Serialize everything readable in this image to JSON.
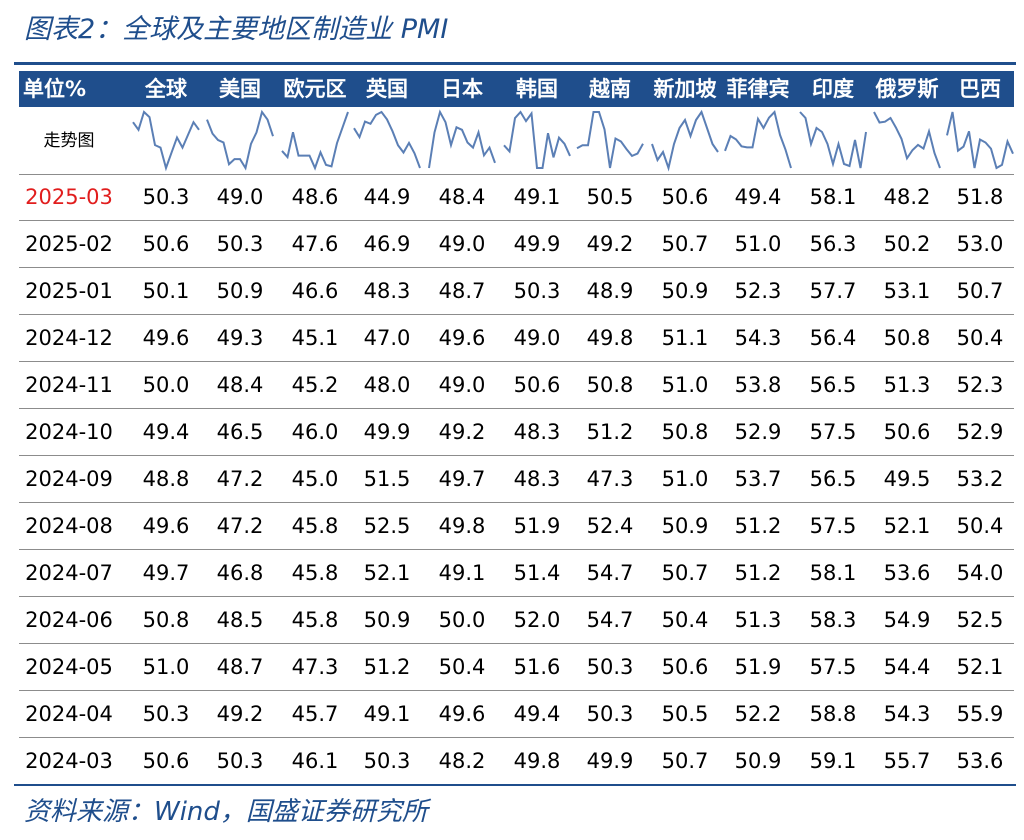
{
  "title": "图表2：全球及主要地区制造业 PMI",
  "source": "资料来源：Wind，国盛证券研究所",
  "colors": {
    "accent": "#1f4e8c",
    "line": "#5b7fb5",
    "highlight": "#e11d1d"
  },
  "chart_data": {
    "type": "table",
    "unit_header": "单位%",
    "trend_label": "走势图",
    "columns": [
      "全球",
      "美国",
      "欧元区",
      "英国",
      "日本",
      "韩国",
      "越南",
      "新加坡",
      "菲律宾",
      "印度",
      "俄罗斯",
      "巴西"
    ],
    "rows": [
      {
        "date": "2025-03",
        "values": [
          50.3,
          49.0,
          48.6,
          44.9,
          48.4,
          49.1,
          50.5,
          50.6,
          49.4,
          58.1,
          48.2,
          51.8
        ]
      },
      {
        "date": "2025-02",
        "values": [
          50.6,
          50.3,
          47.6,
          46.9,
          49.0,
          49.9,
          49.2,
          50.7,
          51.0,
          56.3,
          50.2,
          53.0
        ]
      },
      {
        "date": "2025-01",
        "values": [
          50.1,
          50.9,
          46.6,
          48.3,
          48.7,
          50.3,
          48.9,
          50.9,
          52.3,
          57.7,
          53.1,
          50.7
        ]
      },
      {
        "date": "2024-12",
        "values": [
          49.6,
          49.3,
          45.1,
          47.0,
          49.6,
          49.0,
          49.8,
          51.1,
          54.3,
          56.4,
          50.8,
          50.4
        ]
      },
      {
        "date": "2024-11",
        "values": [
          50.0,
          48.4,
          45.2,
          48.0,
          49.0,
          50.6,
          50.8,
          51.0,
          53.8,
          56.5,
          51.3,
          52.3
        ]
      },
      {
        "date": "2024-10",
        "values": [
          49.4,
          46.5,
          46.0,
          49.9,
          49.2,
          48.3,
          51.2,
          50.8,
          52.9,
          57.5,
          50.6,
          52.9
        ]
      },
      {
        "date": "2024-09",
        "values": [
          48.8,
          47.2,
          45.0,
          51.5,
          49.7,
          48.3,
          47.3,
          51.0,
          53.7,
          56.5,
          49.5,
          53.2
        ]
      },
      {
        "date": "2024-08",
        "values": [
          49.6,
          47.2,
          45.8,
          52.5,
          49.8,
          51.9,
          52.4,
          50.9,
          51.2,
          57.5,
          52.1,
          50.4
        ]
      },
      {
        "date": "2024-07",
        "values": [
          49.7,
          46.8,
          45.8,
          52.1,
          49.1,
          51.4,
          54.7,
          50.7,
          51.2,
          58.1,
          53.6,
          54.0
        ]
      },
      {
        "date": "2024-06",
        "values": [
          50.8,
          48.5,
          45.8,
          50.9,
          50.0,
          52.0,
          54.7,
          50.4,
          51.3,
          58.3,
          54.9,
          52.5
        ]
      },
      {
        "date": "2024-05",
        "values": [
          51.0,
          48.7,
          47.3,
          51.2,
          50.4,
          51.6,
          50.3,
          50.6,
          51.9,
          57.5,
          54.4,
          52.1
        ]
      },
      {
        "date": "2024-04",
        "values": [
          50.3,
          49.2,
          45.7,
          49.1,
          49.6,
          49.4,
          50.3,
          50.5,
          52.2,
          58.8,
          54.3,
          55.9
        ]
      },
      {
        "date": "2024-03",
        "values": [
          50.6,
          50.3,
          46.1,
          50.3,
          48.2,
          49.8,
          49.9,
          50.7,
          50.9,
          59.1,
          55.7,
          53.6
        ]
      }
    ]
  }
}
